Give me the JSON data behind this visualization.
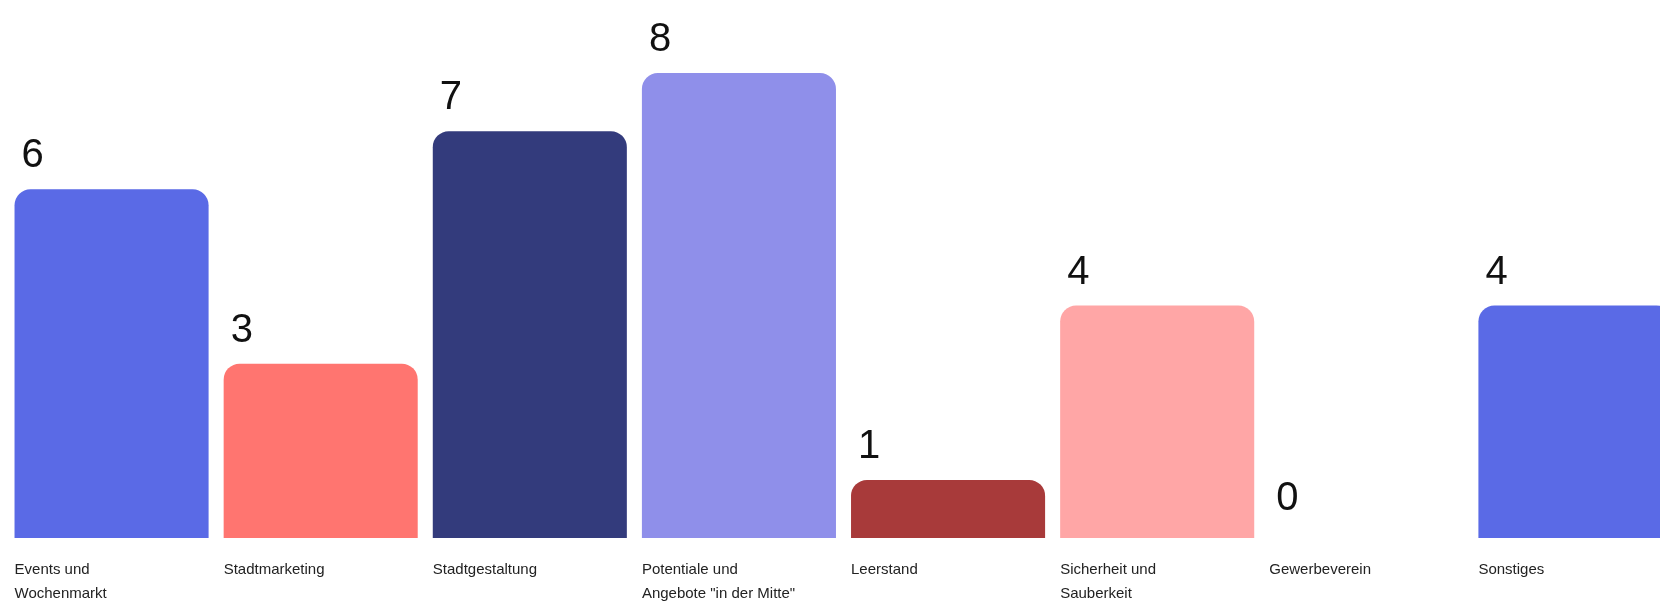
{
  "chart_data": {
    "type": "bar",
    "categories": [
      "Events und Wochenmarkt",
      "Stadtmarketing",
      "Stadtgestaltung",
      "Potentiale und Angebote \"in der Mitte\"",
      "Leerstand",
      "Sicherheit und Sauberkeit",
      "Gewerbeverein",
      "Sonstiges"
    ],
    "values": [
      6,
      3,
      7,
      8,
      1,
      4,
      0,
      4
    ],
    "colors": [
      "#5a6ae6",
      "#ff7570",
      "#333b7c",
      "#8f8fea",
      "#a83a3a",
      "#ffa6a6",
      "#5e58b5",
      "#5a6ae6"
    ],
    "data_labels": true
  }
}
